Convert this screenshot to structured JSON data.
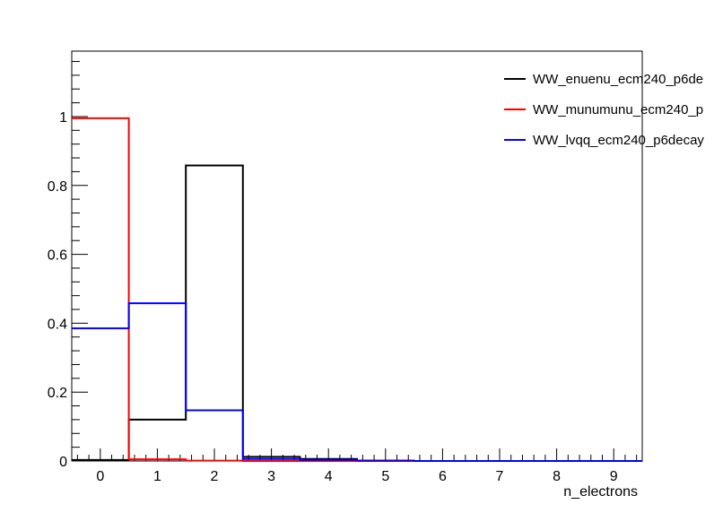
{
  "chart_data": {
    "type": "step",
    "title": "",
    "xlabel": "n_electrons",
    "ylabel": "",
    "xlim": [
      -0.5,
      9.5
    ],
    "ylim": [
      0,
      1.19
    ],
    "grid": false,
    "legend_position": "top-right",
    "bin_centers": [
      0,
      1,
      2,
      3,
      4,
      5,
      6,
      7,
      8,
      9
    ],
    "x_tick_labels": [
      "0",
      "1",
      "2",
      "3",
      "4",
      "5",
      "6",
      "7",
      "8",
      "9"
    ],
    "y_ticks": [
      0,
      0.2,
      0.4,
      0.6,
      0.8,
      1
    ],
    "y_tick_labels": [
      "0",
      "0.2",
      "0.4",
      "0.6",
      "0.8",
      "1"
    ],
    "series": [
      {
        "name": "WW_enuenu_ecm240_p6de",
        "color": "#000000",
        "values": [
          0.003,
          0.12,
          0.858,
          0.012,
          0.006,
          0.001,
          0,
          0,
          0,
          0
        ]
      },
      {
        "name": "WW_munumunu_ecm240_p",
        "color": "#ff0000",
        "values": [
          0.995,
          0.005,
          0.001,
          0,
          0,
          0,
          0,
          0,
          0,
          0
        ]
      },
      {
        "name": "WW_lvqq_ecm240_p6decay",
        "color": "#0000ff",
        "values": [
          0.385,
          0.458,
          0.147,
          0.006,
          0.003,
          0.001,
          0,
          0,
          0,
          0
        ]
      }
    ]
  }
}
